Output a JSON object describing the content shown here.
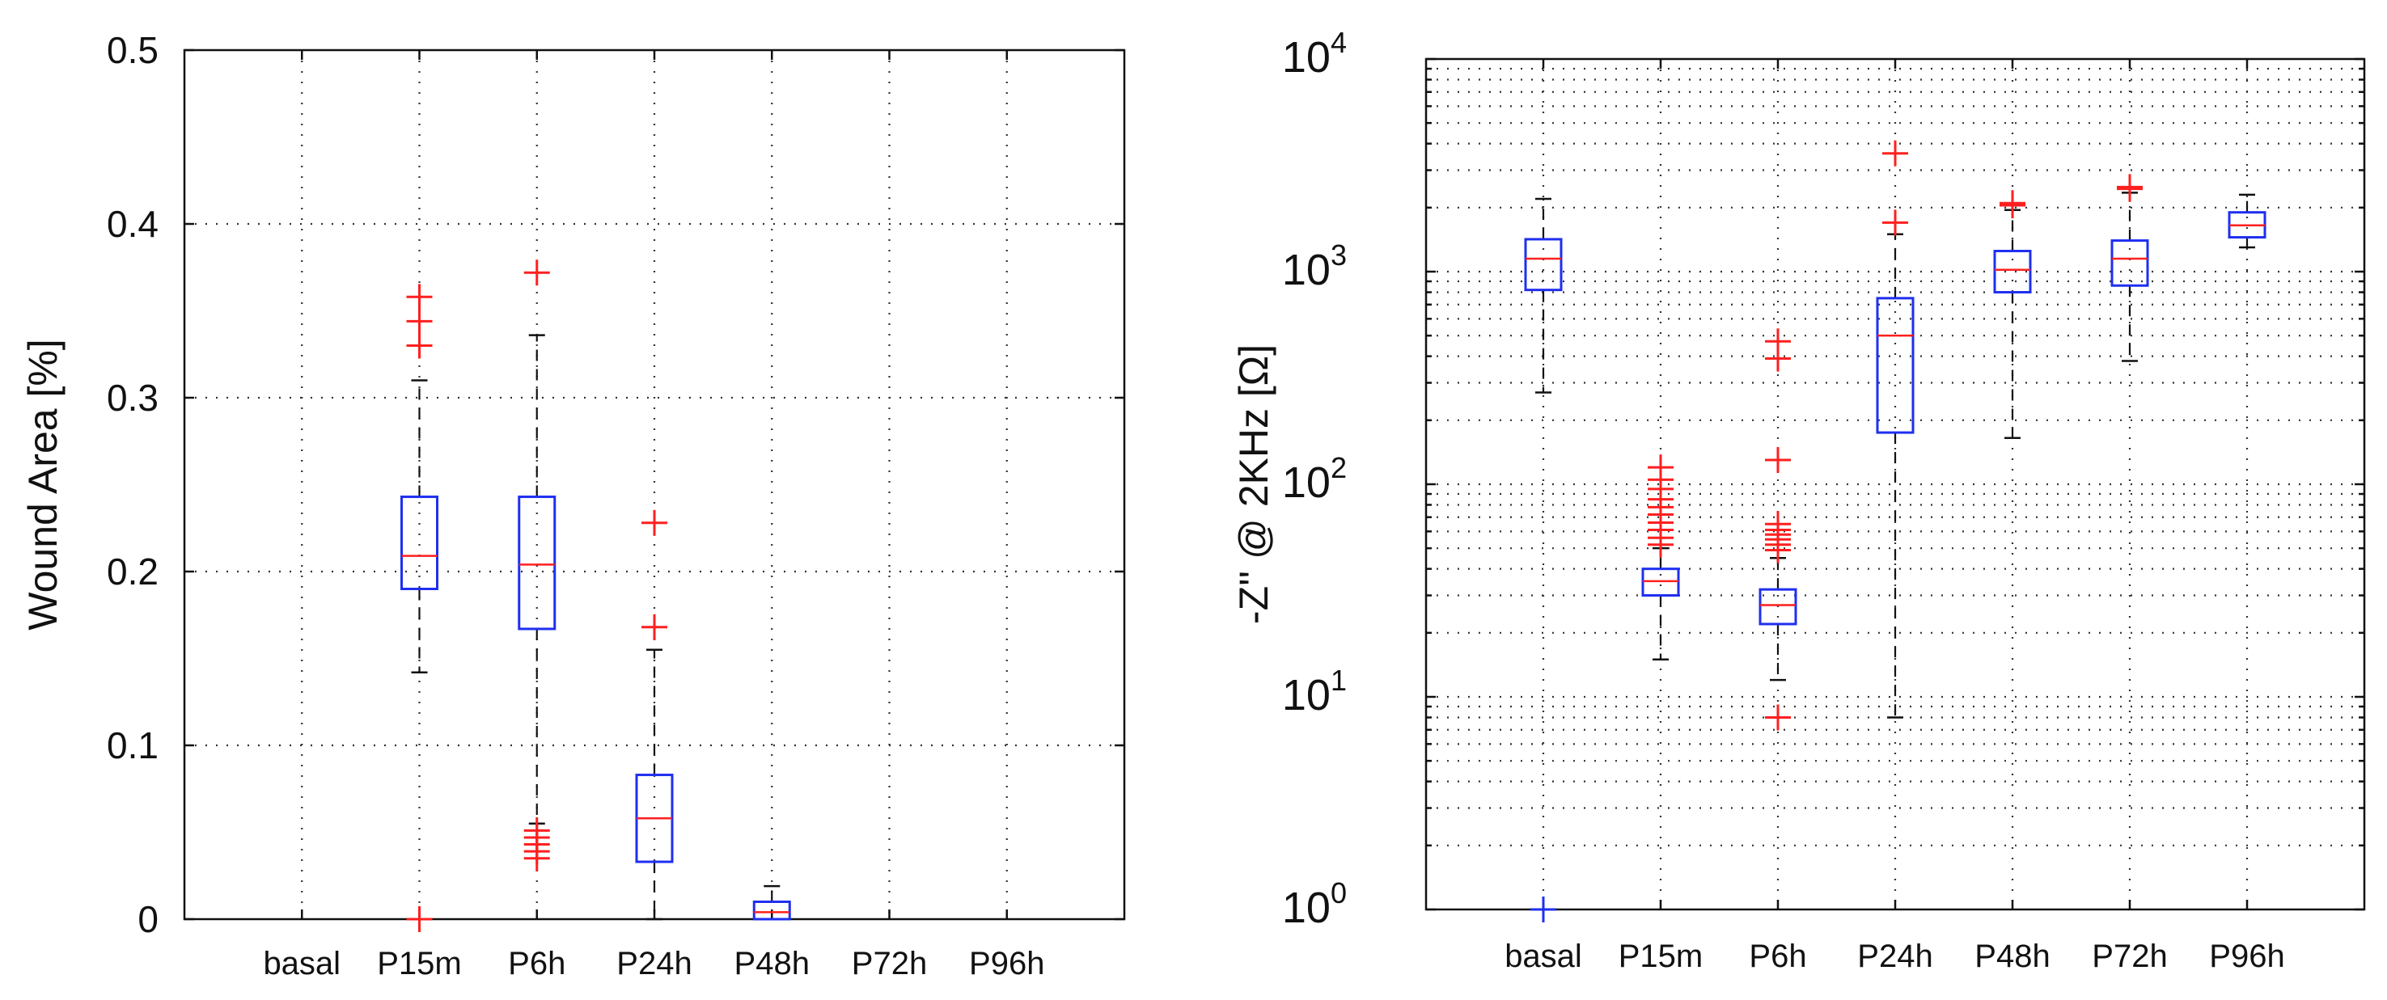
{
  "chart_data": [
    {
      "type": "box",
      "scale": "linear",
      "title": "",
      "xlabel": "",
      "ylabel": "Wound Area [%]",
      "ylim": [
        0,
        0.5
      ],
      "yticks": [
        {
          "value": 0,
          "label": "0"
        },
        {
          "value": 0.1,
          "label": "0.1"
        },
        {
          "value": 0.2,
          "label": "0.2"
        },
        {
          "value": 0.3,
          "label": "0.3"
        },
        {
          "value": 0.4,
          "label": "0.4"
        },
        {
          "value": 0.5,
          "label": "0.5"
        }
      ],
      "categories": [
        "basal",
        "P15m",
        "P6h",
        "P24h",
        "P48h",
        "P72h",
        "P96h"
      ],
      "groups": [
        {
          "category": "P15m",
          "lower_whisker": 0.142,
          "q1": 0.19,
          "median": 0.209,
          "q3": 0.243,
          "upper_whisker": 0.31,
          "outliers": [
            0.358,
            0.344,
            0.33,
            0.0
          ]
        },
        {
          "category": "P6h",
          "lower_whisker": 0.055,
          "q1": 0.167,
          "median": 0.204,
          "q3": 0.243,
          "upper_whisker": 0.336,
          "outliers": [
            0.372,
            0.051,
            0.047,
            0.043,
            0.039,
            0.035
          ]
        },
        {
          "category": "P24h",
          "lower_whisker": 0.0,
          "q1": 0.033,
          "median": 0.058,
          "q3": 0.083,
          "upper_whisker": 0.155,
          "outliers": [
            0.228,
            0.168
          ]
        },
        {
          "category": "P48h",
          "lower_whisker": 0.0,
          "q1": 0.0,
          "median": 0.004,
          "q3": 0.01,
          "upper_whisker": 0.019,
          "outliers": []
        }
      ]
    },
    {
      "type": "box",
      "scale": "log",
      "title": "",
      "xlabel": "",
      "ylabel": "-Z'' @ 2KHz [Ω]",
      "ylim": [
        1,
        10000
      ],
      "yticks": [
        {
          "value": 1,
          "base": "10",
          "exp": "0"
        },
        {
          "value": 10,
          "base": "10",
          "exp": "1"
        },
        {
          "value": 100,
          "base": "10",
          "exp": "2"
        },
        {
          "value": 1000,
          "base": "10",
          "exp": "3"
        },
        {
          "value": 10000,
          "base": "10",
          "exp": "4"
        }
      ],
      "categories": [
        "basal",
        "P15m",
        "P6h",
        "P24h",
        "P48h",
        "P72h",
        "P96h"
      ],
      "groups": [
        {
          "category": "basal",
          "lower_whisker": 270,
          "q1": 820,
          "median": 1150,
          "q3": 1420,
          "upper_whisker": 2200,
          "outliers": [],
          "outliers_blue": [
            1
          ]
        },
        {
          "category": "P15m",
          "lower_whisker": 15,
          "q1": 30,
          "median": 35,
          "q3": 40,
          "upper_whisker": 50,
          "outliers": [
            120,
            105,
            95,
            85,
            78,
            72,
            66,
            61,
            56,
            52
          ]
        },
        {
          "category": "P6h",
          "lower_whisker": 12,
          "q1": 22,
          "median": 27,
          "q3": 32,
          "upper_whisker": 45,
          "outliers": [
            470,
            390,
            130,
            65,
            61,
            58,
            55,
            52,
            49,
            8
          ]
        },
        {
          "category": "P24h",
          "lower_whisker": 8,
          "q1": 175,
          "median": 500,
          "q3": 750,
          "upper_whisker": 1500,
          "outliers": [
            3600,
            1700
          ]
        },
        {
          "category": "P48h",
          "lower_whisker": 165,
          "q1": 800,
          "median": 1020,
          "q3": 1250,
          "upper_whisker": 1950,
          "outliers": [
            2050,
            2100
          ]
        },
        {
          "category": "P72h",
          "lower_whisker": 380,
          "q1": 860,
          "median": 1150,
          "q3": 1400,
          "upper_whisker": 2350,
          "outliers": [
            2450,
            2500
          ]
        },
        {
          "category": "P96h",
          "lower_whisker": 1300,
          "q1": 1450,
          "median": 1650,
          "q3": 1900,
          "upper_whisker": 2300,
          "outliers": []
        }
      ]
    }
  ]
}
